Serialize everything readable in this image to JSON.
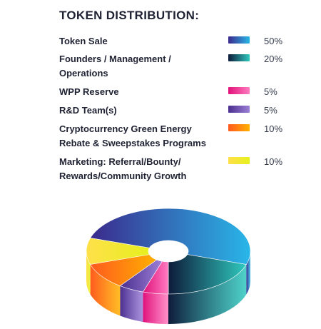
{
  "title": "TOKEN DISTRIBUTION:",
  "chart_data": {
    "type": "pie",
    "title": "TOKEN DISTRIBUTION:",
    "categories": [
      "Token Sale",
      "Founders / Management / Operations",
      "WPP Reserve",
      "R&D Team(s)",
      "Cryptocurrency Green Energy Rebate & Sweepstakes Programs",
      "Marketing: Referral/Bounty/ Rewards/Community Growth"
    ],
    "values": [
      50,
      20,
      5,
      5,
      10,
      10
    ],
    "value_labels": [
      "50%",
      "20%",
      "5%",
      "5%",
      "10%",
      "10%"
    ],
    "style": "3d-donut",
    "legend_placement": "top",
    "colors": [
      [
        "#3b2a8c",
        "#29b6e8"
      ],
      [
        "#0e1b3a",
        "#2fc9bf"
      ],
      [
        "#e0117a",
        "#ff7cc0"
      ],
      [
        "#4a2f8f",
        "#9c7fd6"
      ],
      [
        "#ff5a1f",
        "#ffb000"
      ],
      [
        "#ffe04a",
        "#e6f01e"
      ]
    ]
  },
  "legend": [
    {
      "label_lines": [
        "Token Sale"
      ],
      "pct": "50%"
    },
    {
      "label_lines": [
        "Founders / Management /",
        "Operations"
      ],
      "pct": "20%"
    },
    {
      "label_lines": [
        "WPP Reserve"
      ],
      "pct": "5%"
    },
    {
      "label_lines": [
        "R&D Team(s)"
      ],
      "pct": "5%"
    },
    {
      "label_lines": [
        "Cryptocurrency Green Energy",
        "Rebate & Sweepstakes Programs"
      ],
      "pct": "10%"
    },
    {
      "label_lines": [
        "Marketing: Referral/Bounty/",
        "Rewards/Community Growth"
      ],
      "pct": "10%"
    }
  ]
}
